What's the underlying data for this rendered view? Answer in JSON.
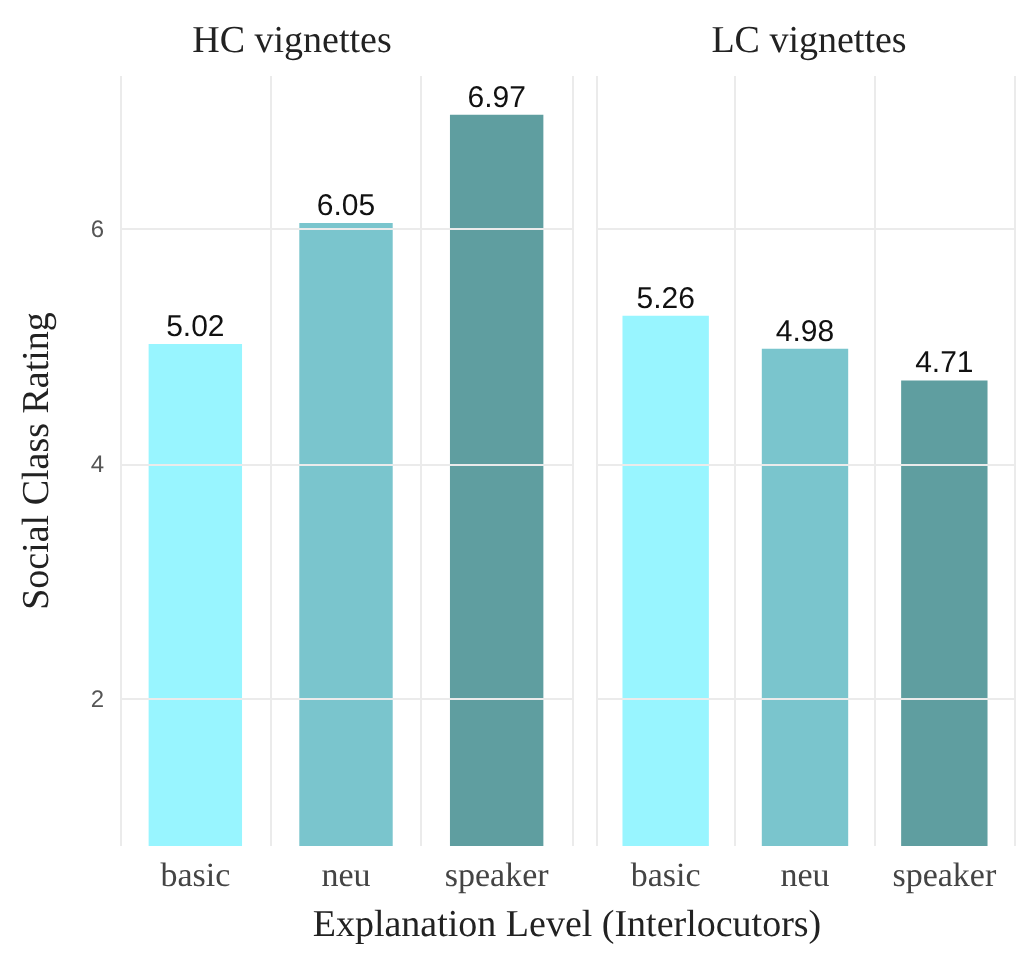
{
  "chart_data": [
    {
      "type": "bar",
      "title": "HC vignettes",
      "xlabel": "Explanation Level (Interlocutors)",
      "ylabel": "Social Class Rating",
      "categories": [
        "basic",
        "neu",
        "speaker"
      ],
      "values": [
        5.02,
        6.05,
        6.97
      ],
      "colors": [
        "#98f5ff",
        "#7ac5cd",
        "#5f9ea0"
      ],
      "ylim": [
        0.75,
        7.3
      ],
      "yticks": [
        2,
        4,
        6
      ],
      "grid": true,
      "data_labels": true
    },
    {
      "type": "bar",
      "title": "LC vignettes",
      "categories": [
        "basic",
        "neu",
        "speaker"
      ],
      "values": [
        5.26,
        4.98,
        4.71
      ],
      "colors": [
        "#98f5ff",
        "#7ac5cd",
        "#5f9ea0"
      ],
      "ylim": [
        0.75,
        7.3
      ],
      "yticks": [
        2,
        4,
        6
      ],
      "grid": true,
      "data_labels": true,
      "tick_labels": "x"
    }
  ]
}
